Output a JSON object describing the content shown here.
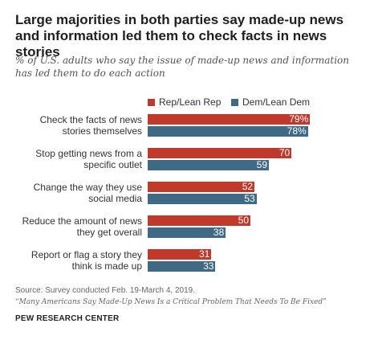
{
  "chart_data": {
    "type": "bar",
    "orientation": "horizontal",
    "title": "Large majorities in both parties say made-up news and information led them to check facts in news stories",
    "subtitle": "% of U.S. adults who say the issue of made-up news and information has led them to do each action",
    "categories": [
      "Check the facts of news stories themselves",
      "Stop getting news from a specific outlet",
      "Change the way they use social media",
      "Reduce the amount of news they get overall",
      "Report or flag a story they think is made up"
    ],
    "series": [
      {
        "name": "Rep/Lean Rep",
        "color": "#c0392b",
        "values": [
          79,
          70,
          52,
          50,
          31
        ],
        "labels": [
          "79%",
          "70",
          "52",
          "50",
          "31"
        ]
      },
      {
        "name": "Dem/Lean Dem",
        "color": "#3e6a86",
        "values": [
          78,
          59,
          53,
          38,
          33
        ],
        "labels": [
          "78%",
          "59",
          "53",
          "38",
          "33"
        ]
      }
    ],
    "xlim": [
      0,
      100
    ],
    "legend": "top-right",
    "grid": false
  },
  "footer": {
    "source": "Source: Survey conducted Feb. 19-March 4, 2019.",
    "report": "“Many Americans Say Made-Up News Is a Critical Problem That Needs To Be Fixed”",
    "org": "PEW RESEARCH CENTER"
  }
}
